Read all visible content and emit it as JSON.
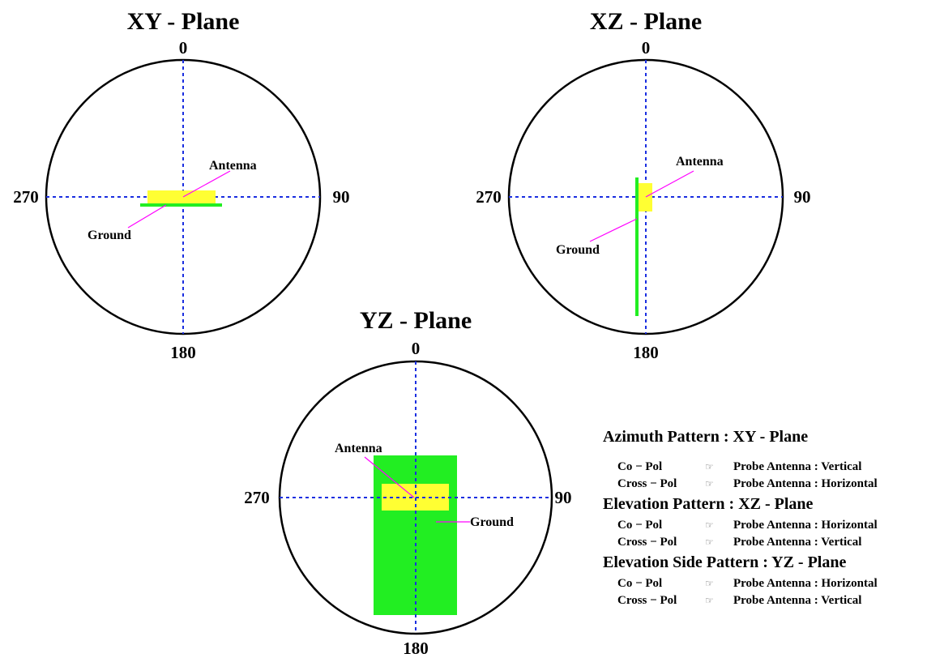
{
  "colors": {
    "antenna": "#ffff33",
    "ground": "#22ee22",
    "axis": "#1a2ee0",
    "leader": "#ff00ff"
  },
  "panels": [
    {
      "title": "XY - Plane",
      "deg_top": "0",
      "deg_right": "90",
      "deg_bottom": "180",
      "deg_left": "270",
      "antenna_label": "Antenna",
      "ground_label": "Ground"
    },
    {
      "title": "XZ - Plane",
      "deg_top": "0",
      "deg_right": "90",
      "deg_bottom": "180",
      "deg_left": "270",
      "antenna_label": "Antenna",
      "ground_label": "Ground"
    },
    {
      "title": "YZ - Plane",
      "deg_top": "0",
      "deg_right": "90",
      "deg_bottom": "180",
      "deg_left": "270",
      "antenna_label": "Antenna",
      "ground_label": "Ground"
    }
  ],
  "legend": {
    "hand_icon": "pointing-hand-icon",
    "sections": [
      {
        "heading": "Azimuth Pattern : XY - Plane",
        "rows": [
          {
            "pol": "Co − Pol",
            "probe": "Probe Antenna : Vertical"
          },
          {
            "pol": "Cross − Pol",
            "probe": "Probe Antenna : Horizontal"
          }
        ]
      },
      {
        "heading": "Elevation Pattern : XZ - Plane",
        "rows": [
          {
            "pol": "Co − Pol",
            "probe": "Probe Antenna : Horizontal"
          },
          {
            "pol": "Cross − Pol",
            "probe": "Probe Antenna : Vertical"
          }
        ]
      },
      {
        "heading": "Elevation Side Pattern : YZ - Plane",
        "rows": [
          {
            "pol": "Co − Pol",
            "probe": "Probe Antenna : Horizontal"
          },
          {
            "pol": "Cross − Pol",
            "probe": "Probe Antenna : Vertical"
          }
        ]
      }
    ]
  }
}
